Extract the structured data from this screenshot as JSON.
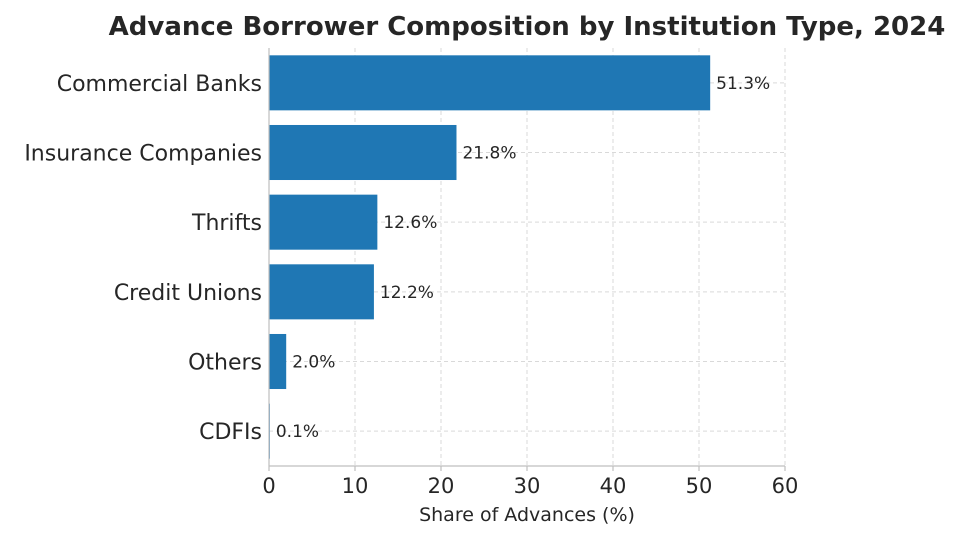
{
  "chart_data": {
    "type": "bar",
    "orientation": "horizontal",
    "title": "Advance Borrower Composition by Institution Type, 2024",
    "xlabel": "Share of Advances (%)",
    "ylabel": "",
    "categories": [
      "Commercial Banks",
      "Insurance Companies",
      "Thrifts",
      "Credit Unions",
      "Others",
      "CDFIs"
    ],
    "values": [
      51.3,
      21.8,
      12.6,
      12.2,
      2.0,
      0.1
    ],
    "data_labels": [
      "51.3%",
      "21.8%",
      "12.6%",
      "12.2%",
      "2.0%",
      "0.1%"
    ],
    "xlim": [
      0,
      60
    ],
    "xticks": [
      0,
      10,
      20,
      30,
      40,
      50,
      60
    ],
    "xtick_labels": [
      "0",
      "10",
      "20",
      "30",
      "40",
      "50",
      "60"
    ],
    "grid": true,
    "bar_color": "#1f77b4"
  }
}
